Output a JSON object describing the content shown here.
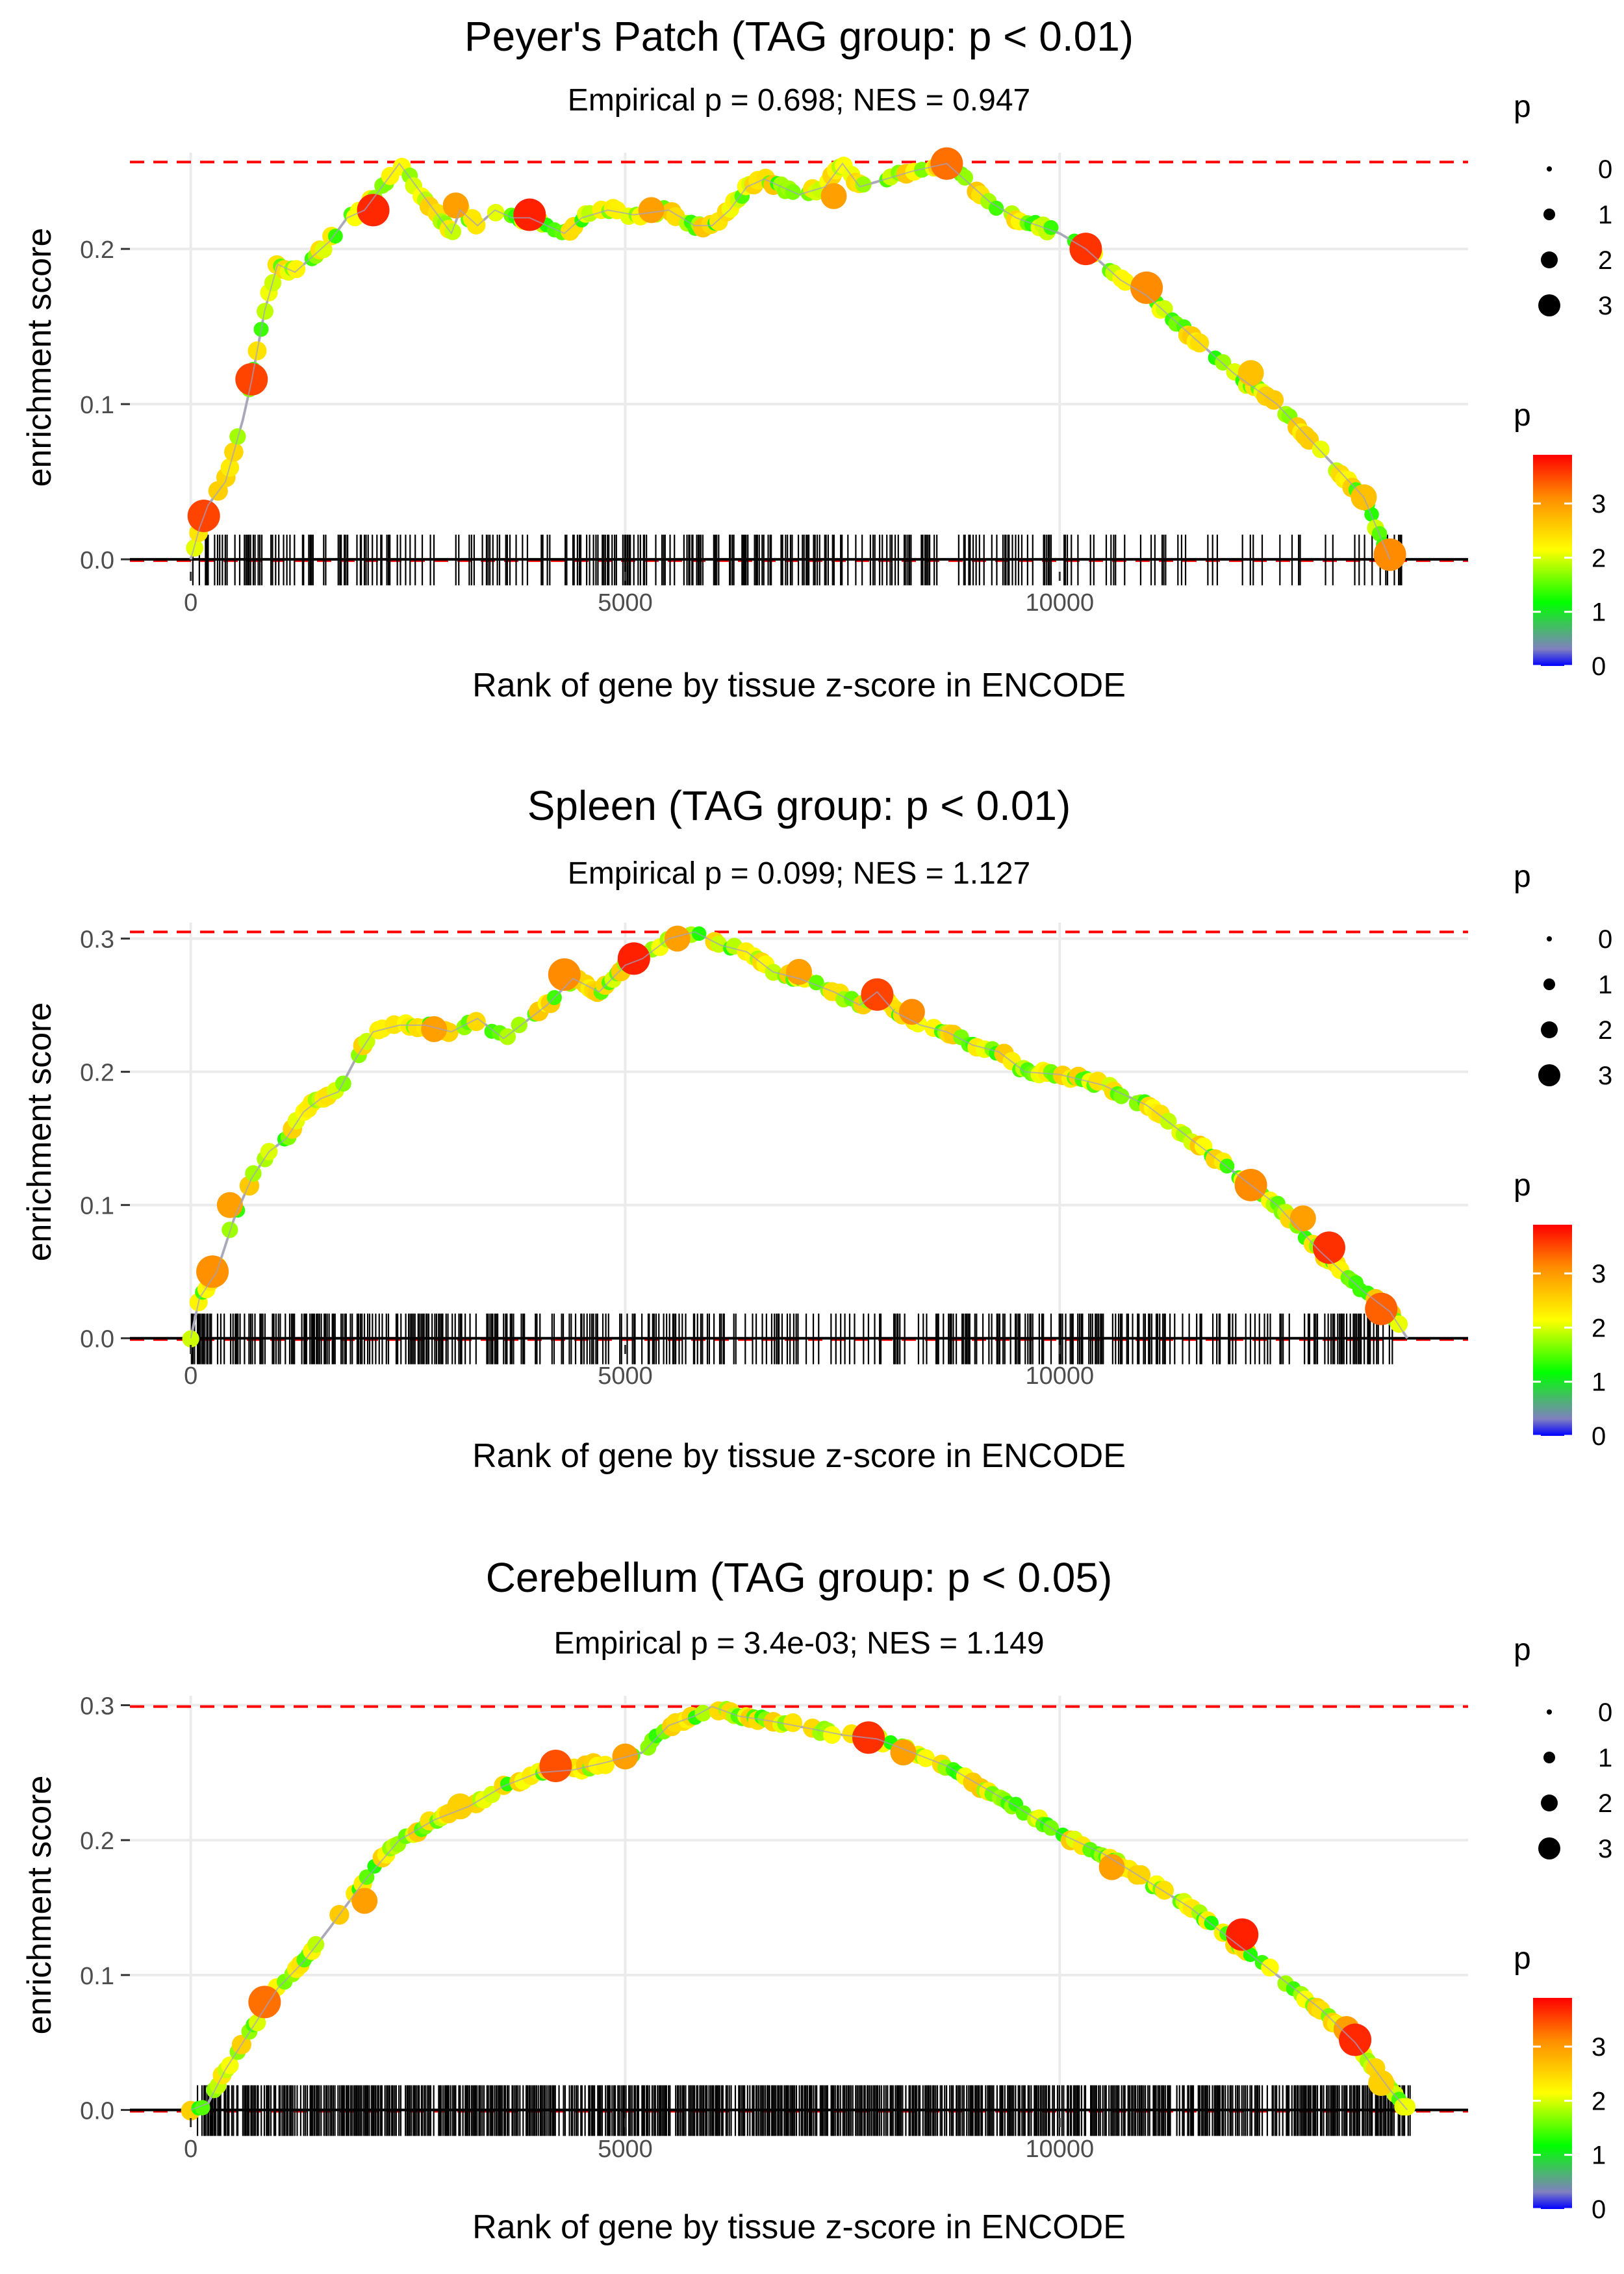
{
  "figure": {
    "xlabel": "Rank of gene by tissue z-score in ENCODE",
    "ylabel": "enrichment score",
    "size_legend_title": "p",
    "size_legend_labels": [
      "0",
      "1",
      "2",
      "3"
    ],
    "color_legend_title": "p",
    "color_legend_labels": [
      "0",
      "1",
      "2",
      "3"
    ],
    "colors": {
      "curve": "#b3b3b3",
      "threshold_line": "#ff0000",
      "zero_line": "#000000",
      "grid": "#ebebeb",
      "gradient": [
        "#0000ff",
        "#8080c0",
        "#00ff00",
        "#ffff00",
        "#ff8c00",
        "#ff0000"
      ]
    }
  },
  "chart_data": [
    {
      "type": "line",
      "title": "Peyer's Patch (TAG group: p < 0.01)",
      "subtitle": "Empirical p = 0.698; NES = 0.947",
      "xlabel": "Rank of gene by tissue z-score in ENCODE",
      "ylabel": "enrichment score",
      "xlim": [
        -700,
        14700
      ],
      "ylim": [
        -0.008,
        0.262
      ],
      "xticks": [
        0,
        5000,
        10000
      ],
      "xtick_labels": [
        "0",
        "5000",
        "10000"
      ],
      "yticks": [
        0.0,
        0.1,
        0.2
      ],
      "ytick_labels": [
        "0.0",
        "0.1",
        "0.2"
      ],
      "max_es": 0.256,
      "curve": [
        [
          0,
          0.0
        ],
        [
          100,
          0.02
        ],
        [
          200,
          0.035
        ],
        [
          400,
          0.05
        ],
        [
          600,
          0.09
        ],
        [
          700,
          0.115
        ],
        [
          850,
          0.16
        ],
        [
          1000,
          0.19
        ],
        [
          1200,
          0.185
        ],
        [
          1400,
          0.195
        ],
        [
          1600,
          0.205
        ],
        [
          1800,
          0.22
        ],
        [
          2000,
          0.225
        ],
        [
          2200,
          0.24
        ],
        [
          2400,
          0.255
        ],
        [
          3000,
          0.21
        ],
        [
          3100,
          0.225
        ],
        [
          3300,
          0.215
        ],
        [
          3500,
          0.225
        ],
        [
          3700,
          0.22
        ],
        [
          3900,
          0.22
        ],
        [
          4100,
          0.215
        ],
        [
          4300,
          0.21
        ],
        [
          4500,
          0.22
        ],
        [
          4800,
          0.225
        ],
        [
          5100,
          0.222
        ],
        [
          5500,
          0.225
        ],
        [
          5800,
          0.215
        ],
        [
          6000,
          0.215
        ],
        [
          6200,
          0.225
        ],
        [
          6400,
          0.24
        ],
        [
          6600,
          0.245
        ],
        [
          7000,
          0.235
        ],
        [
          7300,
          0.24
        ],
        [
          7500,
          0.255
        ],
        [
          7700,
          0.24
        ],
        [
          8000,
          0.245
        ],
        [
          8300,
          0.25
        ],
        [
          8700,
          0.255
        ],
        [
          8900,
          0.245
        ],
        [
          9200,
          0.23
        ],
        [
          9500,
          0.22
        ],
        [
          10000,
          0.21
        ],
        [
          10300,
          0.2
        ],
        [
          10700,
          0.18
        ],
        [
          11000,
          0.17
        ],
        [
          11500,
          0.145
        ],
        [
          12000,
          0.12
        ],
        [
          12500,
          0.1
        ],
        [
          13000,
          0.07
        ],
        [
          13500,
          0.04
        ],
        [
          13800,
          0.0
        ]
      ],
      "hits_density": [
        [
          0,
          0.45
        ],
        [
          2400,
          0.45
        ],
        [
          3000,
          0.1
        ],
        [
          3300,
          0.45
        ],
        [
          6200,
          0.45
        ],
        [
          7600,
          0.55
        ],
        [
          9000,
          0.3
        ],
        [
          12500,
          0.12
        ],
        [
          13800,
          0.3
        ],
        [
          14000,
          0.05
        ]
      ],
      "highlights": [
        [
          150,
          0.028,
          3,
          "#ff4400"
        ],
        [
          700,
          0.116,
          3,
          "#ff4400"
        ],
        [
          2100,
          0.225,
          3,
          "#ff2800"
        ],
        [
          3050,
          0.228,
          2,
          "#ffa000"
        ],
        [
          3900,
          0.222,
          3,
          "#ff2000"
        ],
        [
          5300,
          0.225,
          2,
          "#ffa000"
        ],
        [
          7400,
          0.234,
          2,
          "#ffa000"
        ],
        [
          8700,
          0.255,
          3,
          "#ff7000"
        ],
        [
          10300,
          0.2,
          3,
          "#ff3300"
        ],
        [
          11000,
          0.175,
          3,
          "#ff8c00"
        ],
        [
          12200,
          0.12,
          2,
          "#ffc000"
        ],
        [
          13500,
          0.04,
          2,
          "#ffc000"
        ],
        [
          13800,
          0.003,
          3,
          "#ff8c00"
        ]
      ]
    },
    {
      "type": "line",
      "title": "Spleen (TAG group: p < 0.01)",
      "subtitle": "Empirical p = 0.099; NES = 1.127",
      "xlabel": "Rank of gene by tissue z-score in ENCODE",
      "ylabel": "enrichment score",
      "xlim": [
        -700,
        14700
      ],
      "ylim": [
        -0.005,
        0.312
      ],
      "xticks": [
        0,
        5000,
        10000
      ],
      "xtick_labels": [
        "0",
        "5000",
        "10000"
      ],
      "yticks": [
        0.0,
        0.1,
        0.2,
        0.3
      ],
      "ytick_labels": [
        "0.0",
        "0.1",
        "0.2",
        "0.3"
      ],
      "max_es": 0.305,
      "curve": [
        [
          0,
          0.0
        ],
        [
          100,
          0.03
        ],
        [
          300,
          0.05
        ],
        [
          500,
          0.09
        ],
        [
          700,
          0.12
        ],
        [
          900,
          0.14
        ],
        [
          1100,
          0.15
        ],
        [
          1300,
          0.17
        ],
        [
          1500,
          0.18
        ],
        [
          1700,
          0.185
        ],
        [
          1900,
          0.21
        ],
        [
          2100,
          0.23
        ],
        [
          2400,
          0.235
        ],
        [
          2700,
          0.235
        ],
        [
          3000,
          0.23
        ],
        [
          3300,
          0.24
        ],
        [
          3600,
          0.225
        ],
        [
          3900,
          0.24
        ],
        [
          4100,
          0.25
        ],
        [
          4400,
          0.27
        ],
        [
          4700,
          0.26
        ],
        [
          5000,
          0.28
        ],
        [
          5200,
          0.285
        ],
        [
          5500,
          0.3
        ],
        [
          5800,
          0.305
        ],
        [
          6100,
          0.295
        ],
        [
          6400,
          0.29
        ],
        [
          6700,
          0.275
        ],
        [
          7000,
          0.27
        ],
        [
          7400,
          0.26
        ],
        [
          7700,
          0.25
        ],
        [
          7900,
          0.26
        ],
        [
          8100,
          0.245
        ],
        [
          8400,
          0.235
        ],
        [
          8700,
          0.23
        ],
        [
          9000,
          0.22
        ],
        [
          9300,
          0.215
        ],
        [
          9600,
          0.2
        ],
        [
          10000,
          0.198
        ],
        [
          10500,
          0.19
        ],
        [
          11000,
          0.175
        ],
        [
          11500,
          0.15
        ],
        [
          12000,
          0.125
        ],
        [
          12500,
          0.1
        ],
        [
          13000,
          0.065
        ],
        [
          13500,
          0.035
        ],
        [
          13800,
          0.02
        ],
        [
          14000,
          0.0
        ]
      ],
      "hits_density": [
        [
          0,
          0.6
        ],
        [
          2000,
          0.6
        ],
        [
          4000,
          0.45
        ],
        [
          6200,
          0.45
        ],
        [
          7500,
          0.25
        ],
        [
          9600,
          0.55
        ],
        [
          11500,
          0.45
        ],
        [
          13800,
          0.5
        ],
        [
          14000,
          0.05
        ]
      ],
      "highlights": [
        [
          250,
          0.05,
          3,
          "#ff9000"
        ],
        [
          450,
          0.1,
          2,
          "#ffa000"
        ],
        [
          2800,
          0.232,
          2,
          "#ffa000"
        ],
        [
          4300,
          0.273,
          3,
          "#ff8c00"
        ],
        [
          5100,
          0.285,
          3,
          "#ff2000"
        ],
        [
          5600,
          0.3,
          2,
          "#ffa000"
        ],
        [
          7000,
          0.275,
          2,
          "#ffa000"
        ],
        [
          7900,
          0.258,
          3,
          "#ff4400"
        ],
        [
          8300,
          0.245,
          2,
          "#ff8c00"
        ],
        [
          12200,
          0.115,
          3,
          "#ff8c00"
        ],
        [
          12800,
          0.09,
          2,
          "#ffa000"
        ],
        [
          13100,
          0.068,
          3,
          "#ff3000"
        ],
        [
          13700,
          0.022,
          3,
          "#ff6000"
        ]
      ]
    },
    {
      "type": "line",
      "title": "Cerebellum (TAG group: p < 0.05)",
      "subtitle": "Empirical p = 3.4e-03; NES = 1.149",
      "xlabel": "Rank of gene by tissue z-score in ENCODE",
      "ylabel": "enrichment score",
      "xlim": [
        -700,
        14700
      ],
      "ylim": [
        -0.006,
        0.307
      ],
      "xticks": [
        0,
        5000,
        10000
      ],
      "xtick_labels": [
        "0",
        "5000",
        "10000"
      ],
      "yticks": [
        0.0,
        0.1,
        0.2,
        0.3
      ],
      "ytick_labels": [
        "0.0",
        "0.1",
        "0.2",
        "0.3"
      ],
      "max_es": 0.299,
      "curve": [
        [
          0,
          0.0
        ],
        [
          200,
          0.005
        ],
        [
          400,
          0.03
        ],
        [
          700,
          0.06
        ],
        [
          1000,
          0.09
        ],
        [
          1300,
          0.11
        ],
        [
          1600,
          0.135
        ],
        [
          2000,
          0.17
        ],
        [
          2400,
          0.2
        ],
        [
          2800,
          0.215
        ],
        [
          3200,
          0.225
        ],
        [
          3600,
          0.24
        ],
        [
          4000,
          0.25
        ],
        [
          4400,
          0.252
        ],
        [
          4800,
          0.258
        ],
        [
          5200,
          0.265
        ],
        [
          5500,
          0.285
        ],
        [
          5800,
          0.292
        ],
        [
          6000,
          0.299
        ],
        [
          6300,
          0.292
        ],
        [
          6700,
          0.288
        ],
        [
          7100,
          0.283
        ],
        [
          7500,
          0.278
        ],
        [
          7900,
          0.275
        ],
        [
          8300,
          0.265
        ],
        [
          8700,
          0.255
        ],
        [
          9100,
          0.24
        ],
        [
          9500,
          0.225
        ],
        [
          10000,
          0.205
        ],
        [
          10500,
          0.19
        ],
        [
          11000,
          0.17
        ],
        [
          11500,
          0.15
        ],
        [
          12000,
          0.125
        ],
        [
          12500,
          0.1
        ],
        [
          13000,
          0.075
        ],
        [
          13400,
          0.05
        ],
        [
          13800,
          0.015
        ],
        [
          14000,
          0.0
        ]
      ],
      "hits_density": [
        [
          0,
          0.02
        ],
        [
          150,
          0.85
        ],
        [
          14000,
          0.85
        ],
        [
          14050,
          0.02
        ]
      ],
      "highlights": [
        [
          850,
          0.08,
          3,
          "#ff7000"
        ],
        [
          2000,
          0.155,
          2,
          "#ffa000"
        ],
        [
          3100,
          0.225,
          2,
          "#ffd000"
        ],
        [
          4200,
          0.255,
          3,
          "#ff5000"
        ],
        [
          5000,
          0.262,
          2,
          "#ffa000"
        ],
        [
          7800,
          0.276,
          3,
          "#ff3000"
        ],
        [
          8200,
          0.265,
          2,
          "#ffa000"
        ],
        [
          10600,
          0.18,
          2,
          "#ffa000"
        ],
        [
          12100,
          0.13,
          3,
          "#ff2000"
        ],
        [
          13300,
          0.06,
          2,
          "#ffa000"
        ],
        [
          13400,
          0.052,
          3,
          "#ff2800"
        ],
        [
          13700,
          0.02,
          2,
          "#ffd000"
        ]
      ]
    }
  ]
}
